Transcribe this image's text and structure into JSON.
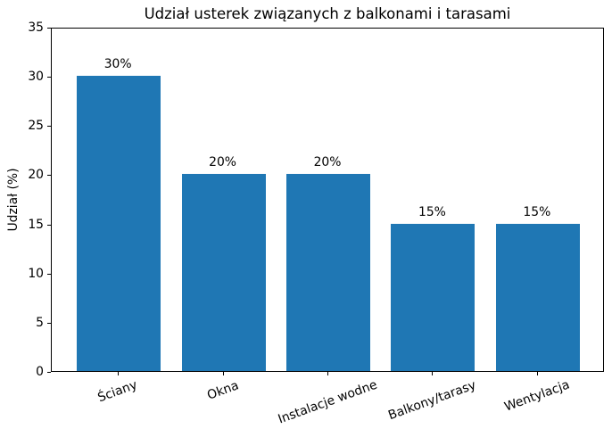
{
  "chart_data": {
    "type": "bar",
    "title": "Udział usterek związanych z balkonami i tarasami",
    "xlabel": "",
    "ylabel": "Udział (%)",
    "categories": [
      "Ściany",
      "Okna",
      "Instalacje wodne",
      "Balkony/tarasy",
      "Wentylacja"
    ],
    "values": [
      30,
      20,
      20,
      15,
      15
    ],
    "bar_labels": [
      "30%",
      "20%",
      "20%",
      "15%",
      "15%"
    ],
    "ylim": [
      0,
      35
    ],
    "yticks": [
      0,
      5,
      10,
      15,
      20,
      25,
      30,
      35
    ],
    "bar_color": "#1f77b4",
    "grid": false,
    "legend": null,
    "x_tick_rotation_deg": 20,
    "bar_width_fraction": 0.8,
    "xlim_units": [
      -0.64,
      4.64
    ]
  }
}
